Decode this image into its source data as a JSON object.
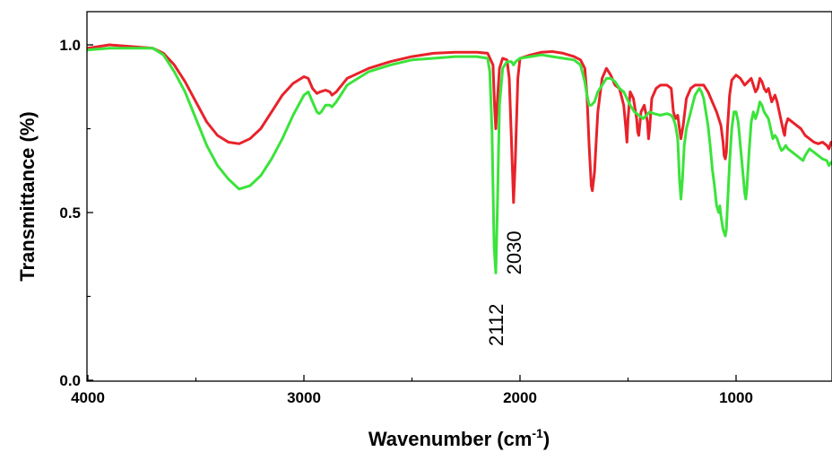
{
  "chart_data": {
    "type": "line",
    "xlabel": "Wavenumber (cm",
    "xlabel_sup": "-1",
    "xlabel_close": ")",
    "ylabel": "Transmittance (%)",
    "xlim": [
      4000,
      520
    ],
    "ylim": [
      0.0,
      1.08
    ],
    "x_reversed": true,
    "x_ticks": [
      {
        "value": 4000,
        "label": "4000"
      },
      {
        "value": 3000,
        "label": "3000"
      },
      {
        "value": 2000,
        "label": "2000"
      },
      {
        "value": 1000,
        "label": "1000"
      }
    ],
    "y_ticks": [
      {
        "value": 0.0,
        "label": "0.0"
      },
      {
        "value": 0.5,
        "label": "0.5"
      },
      {
        "value": 1.0,
        "label": "1.0"
      }
    ],
    "grid": false,
    "series": [
      {
        "color": "#e8222a",
        "points": [
          [
            4000,
            0.99
          ],
          [
            3900,
            1.0
          ],
          [
            3800,
            0.995
          ],
          [
            3700,
            0.99
          ],
          [
            3650,
            0.975
          ],
          [
            3600,
            0.94
          ],
          [
            3550,
            0.89
          ],
          [
            3500,
            0.83
          ],
          [
            3450,
            0.77
          ],
          [
            3400,
            0.73
          ],
          [
            3350,
            0.71
          ],
          [
            3300,
            0.705
          ],
          [
            3250,
            0.72
          ],
          [
            3200,
            0.75
          ],
          [
            3150,
            0.8
          ],
          [
            3100,
            0.85
          ],
          [
            3050,
            0.885
          ],
          [
            3000,
            0.905
          ],
          [
            2980,
            0.9
          ],
          [
            2960,
            0.87
          ],
          [
            2940,
            0.855
          ],
          [
            2925,
            0.86
          ],
          [
            2900,
            0.865
          ],
          [
            2880,
            0.86
          ],
          [
            2870,
            0.85
          ],
          [
            2850,
            0.86
          ],
          [
            2800,
            0.9
          ],
          [
            2700,
            0.93
          ],
          [
            2600,
            0.95
          ],
          [
            2500,
            0.965
          ],
          [
            2400,
            0.975
          ],
          [
            2300,
            0.978
          ],
          [
            2200,
            0.978
          ],
          [
            2150,
            0.975
          ],
          [
            2125,
            0.94
          ],
          [
            2118,
            0.82
          ],
          [
            2112,
            0.75
          ],
          [
            2105,
            0.83
          ],
          [
            2095,
            0.93
          ],
          [
            2080,
            0.96
          ],
          [
            2060,
            0.955
          ],
          [
            2050,
            0.9
          ],
          [
            2040,
            0.72
          ],
          [
            2030,
            0.53
          ],
          [
            2022,
            0.65
          ],
          [
            2010,
            0.9
          ],
          [
            2000,
            0.96
          ],
          [
            1950,
            0.97
          ],
          [
            1900,
            0.978
          ],
          [
            1850,
            0.98
          ],
          [
            1800,
            0.975
          ],
          [
            1750,
            0.965
          ],
          [
            1720,
            0.955
          ],
          [
            1700,
            0.93
          ],
          [
            1690,
            0.85
          ],
          [
            1680,
            0.7
          ],
          [
            1670,
            0.58
          ],
          [
            1665,
            0.565
          ],
          [
            1655,
            0.62
          ],
          [
            1640,
            0.8
          ],
          [
            1620,
            0.9
          ],
          [
            1600,
            0.93
          ],
          [
            1580,
            0.91
          ],
          [
            1560,
            0.88
          ],
          [
            1540,
            0.87
          ],
          [
            1520,
            0.82
          ],
          [
            1510,
            0.75
          ],
          [
            1505,
            0.71
          ],
          [
            1500,
            0.78
          ],
          [
            1490,
            0.86
          ],
          [
            1475,
            0.84
          ],
          [
            1460,
            0.78
          ],
          [
            1455,
            0.74
          ],
          [
            1450,
            0.73
          ],
          [
            1440,
            0.8
          ],
          [
            1425,
            0.82
          ],
          [
            1410,
            0.77
          ],
          [
            1405,
            0.72
          ],
          [
            1400,
            0.75
          ],
          [
            1390,
            0.84
          ],
          [
            1370,
            0.87
          ],
          [
            1350,
            0.88
          ],
          [
            1320,
            0.88
          ],
          [
            1300,
            0.87
          ],
          [
            1290,
            0.8
          ],
          [
            1280,
            0.78
          ],
          [
            1270,
            0.79
          ],
          [
            1262,
            0.75
          ],
          [
            1255,
            0.72
          ],
          [
            1245,
            0.76
          ],
          [
            1230,
            0.84
          ],
          [
            1210,
            0.87
          ],
          [
            1190,
            0.88
          ],
          [
            1170,
            0.88
          ],
          [
            1150,
            0.88
          ],
          [
            1130,
            0.86
          ],
          [
            1110,
            0.83
          ],
          [
            1090,
            0.8
          ],
          [
            1070,
            0.76
          ],
          [
            1060,
            0.71
          ],
          [
            1055,
            0.67
          ],
          [
            1050,
            0.66
          ],
          [
            1045,
            0.68
          ],
          [
            1040,
            0.75
          ],
          [
            1030,
            0.85
          ],
          [
            1020,
            0.895
          ],
          [
            1000,
            0.91
          ],
          [
            980,
            0.9
          ],
          [
            960,
            0.88
          ],
          [
            945,
            0.89
          ],
          [
            930,
            0.9
          ],
          [
            920,
            0.88
          ],
          [
            910,
            0.86
          ],
          [
            900,
            0.87
          ],
          [
            890,
            0.9
          ],
          [
            880,
            0.89
          ],
          [
            870,
            0.87
          ],
          [
            860,
            0.86
          ],
          [
            850,
            0.87
          ],
          [
            835,
            0.83
          ],
          [
            820,
            0.85
          ],
          [
            810,
            0.83
          ],
          [
            800,
            0.8
          ],
          [
            790,
            0.77
          ],
          [
            780,
            0.74
          ],
          [
            775,
            0.73
          ],
          [
            770,
            0.76
          ],
          [
            760,
            0.78
          ],
          [
            740,
            0.77
          ],
          [
            720,
            0.76
          ],
          [
            700,
            0.75
          ],
          [
            680,
            0.73
          ],
          [
            660,
            0.72
          ],
          [
            640,
            0.71
          ],
          [
            620,
            0.705
          ],
          [
            600,
            0.71
          ],
          [
            580,
            0.7
          ],
          [
            570,
            0.69
          ],
          [
            560,
            0.71
          ],
          [
            540,
            0.7
          ],
          [
            530,
            0.72
          ],
          [
            520,
            0.72
          ]
        ]
      },
      {
        "color": "#3be33b",
        "points": [
          [
            4000,
            0.985
          ],
          [
            3900,
            0.99
          ],
          [
            3800,
            0.99
          ],
          [
            3700,
            0.99
          ],
          [
            3650,
            0.97
          ],
          [
            3600,
            0.92
          ],
          [
            3550,
            0.86
          ],
          [
            3500,
            0.78
          ],
          [
            3450,
            0.7
          ],
          [
            3400,
            0.64
          ],
          [
            3350,
            0.6
          ],
          [
            3300,
            0.57
          ],
          [
            3250,
            0.58
          ],
          [
            3200,
            0.61
          ],
          [
            3150,
            0.66
          ],
          [
            3100,
            0.72
          ],
          [
            3050,
            0.79
          ],
          [
            3000,
            0.85
          ],
          [
            2980,
            0.86
          ],
          [
            2960,
            0.83
          ],
          [
            2940,
            0.8
          ],
          [
            2930,
            0.795
          ],
          [
            2920,
            0.8
          ],
          [
            2900,
            0.82
          ],
          [
            2880,
            0.82
          ],
          [
            2870,
            0.815
          ],
          [
            2850,
            0.83
          ],
          [
            2800,
            0.88
          ],
          [
            2700,
            0.92
          ],
          [
            2600,
            0.94
          ],
          [
            2500,
            0.955
          ],
          [
            2400,
            0.96
          ],
          [
            2300,
            0.965
          ],
          [
            2200,
            0.965
          ],
          [
            2150,
            0.96
          ],
          [
            2140,
            0.92
          ],
          [
            2130,
            0.75
          ],
          [
            2120,
            0.4
          ],
          [
            2112,
            0.32
          ],
          [
            2105,
            0.5
          ],
          [
            2095,
            0.82
          ],
          [
            2080,
            0.93
          ],
          [
            2060,
            0.95
          ],
          [
            2040,
            0.95
          ],
          [
            2030,
            0.94
          ],
          [
            2020,
            0.95
          ],
          [
            2000,
            0.96
          ],
          [
            1950,
            0.965
          ],
          [
            1900,
            0.97
          ],
          [
            1850,
            0.965
          ],
          [
            1800,
            0.96
          ],
          [
            1750,
            0.955
          ],
          [
            1720,
            0.94
          ],
          [
            1700,
            0.89
          ],
          [
            1690,
            0.85
          ],
          [
            1680,
            0.82
          ],
          [
            1670,
            0.82
          ],
          [
            1655,
            0.83
          ],
          [
            1640,
            0.86
          ],
          [
            1620,
            0.88
          ],
          [
            1600,
            0.9
          ],
          [
            1580,
            0.9
          ],
          [
            1560,
            0.89
          ],
          [
            1540,
            0.87
          ],
          [
            1520,
            0.86
          ],
          [
            1505,
            0.84
          ],
          [
            1490,
            0.82
          ],
          [
            1470,
            0.8
          ],
          [
            1450,
            0.79
          ],
          [
            1430,
            0.78
          ],
          [
            1400,
            0.8
          ],
          [
            1380,
            0.795
          ],
          [
            1350,
            0.79
          ],
          [
            1320,
            0.795
          ],
          [
            1300,
            0.79
          ],
          [
            1290,
            0.78
          ],
          [
            1280,
            0.76
          ],
          [
            1270,
            0.72
          ],
          [
            1262,
            0.6
          ],
          [
            1255,
            0.54
          ],
          [
            1248,
            0.6
          ],
          [
            1240,
            0.7
          ],
          [
            1230,
            0.75
          ],
          [
            1210,
            0.8
          ],
          [
            1190,
            0.85
          ],
          [
            1170,
            0.87
          ],
          [
            1160,
            0.86
          ],
          [
            1150,
            0.84
          ],
          [
            1140,
            0.8
          ],
          [
            1130,
            0.76
          ],
          [
            1120,
            0.7
          ],
          [
            1110,
            0.63
          ],
          [
            1100,
            0.58
          ],
          [
            1090,
            0.52
          ],
          [
            1080,
            0.5
          ],
          [
            1075,
            0.52
          ],
          [
            1070,
            0.49
          ],
          [
            1060,
            0.45
          ],
          [
            1050,
            0.43
          ],
          [
            1045,
            0.45
          ],
          [
            1040,
            0.52
          ],
          [
            1030,
            0.65
          ],
          [
            1020,
            0.75
          ],
          [
            1010,
            0.8
          ],
          [
            1000,
            0.8
          ],
          [
            990,
            0.77
          ],
          [
            980,
            0.7
          ],
          [
            970,
            0.63
          ],
          [
            960,
            0.56
          ],
          [
            955,
            0.54
          ],
          [
            950,
            0.57
          ],
          [
            940,
            0.68
          ],
          [
            930,
            0.77
          ],
          [
            920,
            0.8
          ],
          [
            910,
            0.78
          ],
          [
            900,
            0.8
          ],
          [
            890,
            0.83
          ],
          [
            880,
            0.82
          ],
          [
            870,
            0.8
          ],
          [
            860,
            0.79
          ],
          [
            850,
            0.78
          ],
          [
            840,
            0.75
          ],
          [
            830,
            0.72
          ],
          [
            820,
            0.73
          ],
          [
            810,
            0.72
          ],
          [
            800,
            0.7
          ],
          [
            790,
            0.685
          ],
          [
            780,
            0.69
          ],
          [
            770,
            0.7
          ],
          [
            760,
            0.69
          ],
          [
            740,
            0.68
          ],
          [
            720,
            0.67
          ],
          [
            700,
            0.66
          ],
          [
            690,
            0.655
          ],
          [
            680,
            0.67
          ],
          [
            660,
            0.69
          ],
          [
            640,
            0.68
          ],
          [
            620,
            0.67
          ],
          [
            600,
            0.66
          ],
          [
            580,
            0.655
          ],
          [
            570,
            0.64
          ],
          [
            560,
            0.65
          ],
          [
            540,
            0.63
          ],
          [
            530,
            0.64
          ],
          [
            520,
            0.65
          ]
        ]
      }
    ],
    "annotations": [
      {
        "text": "2112",
        "x": 2112,
        "y": 0.165
      },
      {
        "text": "2030",
        "x": 2030,
        "y": 0.38
      }
    ]
  }
}
